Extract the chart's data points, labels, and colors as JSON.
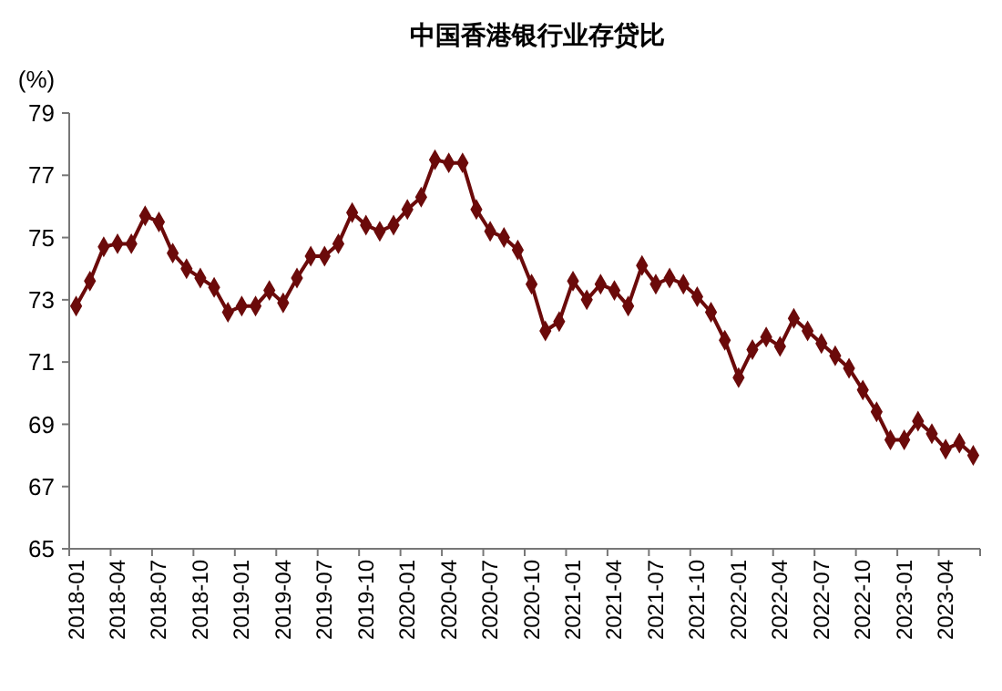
{
  "chart_data": {
    "type": "line",
    "title": "中国香港银行业存贷比",
    "ylabel": "(%)",
    "categories": [
      "2018-01",
      null,
      null,
      "2018-04",
      null,
      null,
      "2018-07",
      null,
      null,
      "2018-10",
      null,
      null,
      "2019-01",
      null,
      null,
      "2019-04",
      null,
      null,
      "2019-07",
      null,
      null,
      "2019-10",
      null,
      null,
      "2020-01",
      null,
      null,
      "2020-04",
      null,
      null,
      "2020-07",
      null,
      null,
      "2020-10",
      null,
      null,
      "2021-01",
      null,
      null,
      "2021-04",
      null,
      null,
      "2021-07",
      null,
      null,
      "2021-10",
      null,
      null,
      "2022-01",
      null,
      null,
      "2022-04",
      null,
      null,
      "2022-07",
      null,
      null,
      "2022-10",
      null,
      null,
      "2023-01",
      null,
      null,
      "2023-04",
      null,
      null
    ],
    "series": [
      {
        "color": "#6b0a0a",
        "values": [
          72.8,
          73.6,
          74.7,
          74.8,
          74.8,
          75.7,
          75.5,
          74.5,
          74.0,
          73.7,
          73.4,
          72.6,
          72.8,
          72.8,
          73.3,
          72.9,
          73.7,
          74.4,
          74.4,
          74.8,
          75.8,
          75.4,
          75.2,
          75.4,
          75.9,
          76.3,
          77.5,
          77.4,
          77.4,
          75.9,
          75.2,
          75.0,
          74.6,
          73.5,
          72.0,
          72.3,
          73.6,
          73.0,
          73.5,
          73.3,
          72.8,
          74.1,
          73.5,
          73.7,
          73.5,
          73.1,
          72.6,
          71.7,
          70.5,
          71.4,
          71.8,
          71.5,
          72.4,
          72.0,
          71.6,
          71.2,
          70.8,
          70.1,
          69.4,
          68.5,
          68.5,
          69.1,
          68.7,
          68.2,
          68.4,
          68.0
        ]
      }
    ],
    "ylim": [
      65,
      79
    ],
    "yticks": [
      65,
      67,
      69,
      71,
      73,
      75,
      77,
      79
    ],
    "grid": false,
    "marker": "diamond",
    "line_style": "solid"
  }
}
